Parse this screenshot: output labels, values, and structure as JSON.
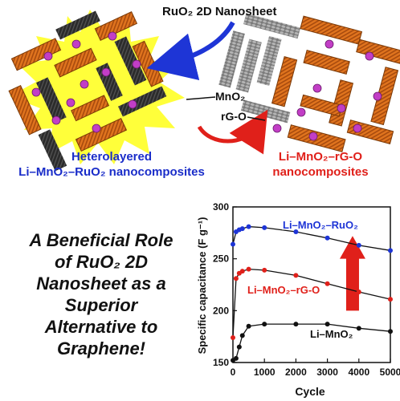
{
  "schematic": {
    "label_ruo2_nanosheet": "RuO₂ 2D Nanosheet",
    "label_mno2": "MnO₂",
    "label_rgo": "rG-O",
    "caption_left_line1": "Heterolayered",
    "caption_left_line2": "Li–MnO₂–RuO₂ nanocomposites",
    "caption_right_line1": "Li–MnO₂–rG-O",
    "caption_right_line2": "nanocomposites",
    "colors": {
      "ruo2_sheet": "#2b2b2b",
      "mno2_sheet": "#e0741e",
      "rgo_sheet": "#8a8a8a",
      "li_ion": "#c23ec6",
      "burst": "#ffff3a",
      "arrow_blue": "#1e35d6",
      "arrow_red": "#e0201a"
    }
  },
  "tagline": [
    "A Beneficial Role",
    "of RuO₂ 2D",
    "Nanosheet as a",
    "Superior",
    "Alternative to",
    "Graphene!"
  ],
  "chart_data": {
    "type": "line",
    "xlabel": "Cycle",
    "ylabel": "Specific capacitance (F g⁻¹)",
    "xlim": [
      0,
      5000
    ],
    "ylim": [
      150,
      300
    ],
    "xticks": [
      0,
      1000,
      2000,
      3000,
      4000,
      5000
    ],
    "yticks": [
      150,
      200,
      250,
      300
    ],
    "x": [
      0,
      100,
      200,
      300,
      500,
      1000,
      2000,
      3000,
      4000,
      5000
    ],
    "series": [
      {
        "name": "Li–MnO₂–RuO₂",
        "color": "#1e35d6",
        "start_value": 264,
        "values": [
          264,
          276,
          278,
          279,
          281,
          280,
          276,
          270,
          263,
          258
        ]
      },
      {
        "name": "Li–MnO₂–rG-O",
        "color": "#e0201a",
        "start_value": 174,
        "values": [
          174,
          231,
          236,
          238,
          240,
          239,
          234,
          226,
          218,
          211
        ]
      },
      {
        "name": "Li–MnO₂",
        "color": "#111111",
        "start_value": 152,
        "values": [
          152,
          154,
          165,
          176,
          185,
          187,
          187,
          187,
          183,
          180
        ]
      }
    ],
    "grid": false
  }
}
